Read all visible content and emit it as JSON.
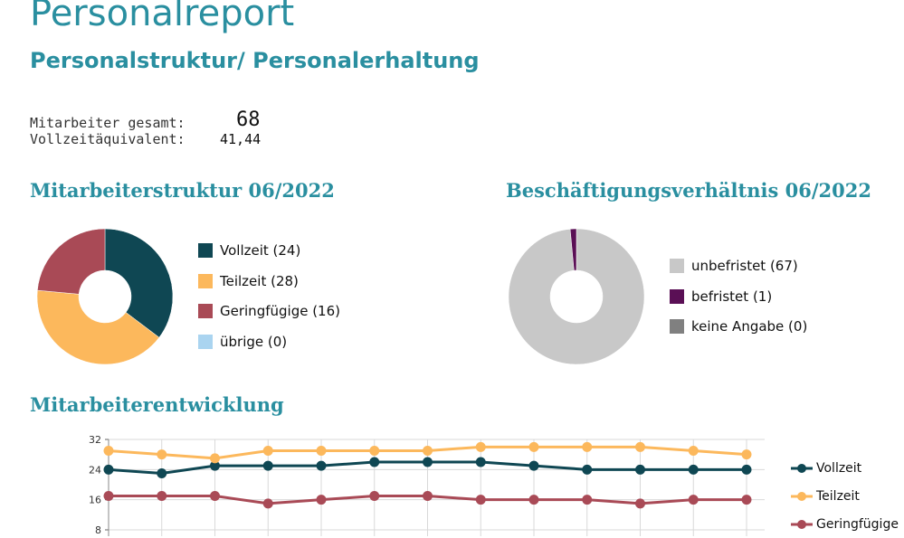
{
  "header": {
    "title": "Personalreport",
    "subtitle": "Personalstruktur/ Personalerhaltung"
  },
  "stats": {
    "employees_label": "Mitarbeiter gesamt:",
    "employees_value": "68",
    "fte_label": "Vollzeitäquivalent:",
    "fte_value": "41,44"
  },
  "colors": {
    "accent": "#2a8fa0",
    "vollzeit": "#0f4753",
    "teilzeit": "#fcb85c",
    "geringfuegige": "#a94a56",
    "uebrige": "#aad4f0",
    "unbefristet": "#c8c8c8",
    "befristet": "#5a0f55",
    "keine_angabe": "#808080"
  },
  "chart_data": [
    {
      "type": "pie",
      "title": "Mitarbeiterstruktur 06/2022",
      "style": "donut",
      "slices": [
        {
          "name": "Vollzeit",
          "value": 24,
          "legend": "Vollzeit (24)",
          "color": "#0f4753"
        },
        {
          "name": "Teilzeit",
          "value": 28,
          "legend": "Teilzeit (28)",
          "color": "#fcb85c"
        },
        {
          "name": "Geringfügige",
          "value": 16,
          "legend": "Geringfügige (16)",
          "color": "#a94a56"
        },
        {
          "name": "übrige",
          "value": 0,
          "legend": "übrige (0)",
          "color": "#aad4f0"
        }
      ]
    },
    {
      "type": "pie",
      "title": "Beschäftigungsverhältnis 06/2022",
      "style": "donut",
      "slices": [
        {
          "name": "unbefristet",
          "value": 67,
          "legend": "unbefristet (67)",
          "color": "#c8c8c8"
        },
        {
          "name": "befristet",
          "value": 1,
          "legend": "befristet (1)",
          "color": "#5a0f55"
        },
        {
          "name": "keine Angabe",
          "value": 0,
          "legend": "keine Angabe (0)",
          "color": "#808080"
        }
      ]
    },
    {
      "type": "line",
      "title": "Mitarbeiterentwicklung",
      "yticks": [
        32,
        24,
        16,
        8
      ],
      "ylim": [
        8,
        32
      ],
      "grid": true,
      "legend_position": "right",
      "series": [
        {
          "name": "Vollzeit",
          "color": "#0f4753",
          "values": [
            24,
            23,
            25,
            25,
            25,
            26,
            26,
            26,
            25,
            24,
            24,
            24,
            24
          ]
        },
        {
          "name": "Teilzeit",
          "color": "#fcb85c",
          "values": [
            29,
            28,
            27,
            29,
            29,
            29,
            29,
            30,
            30,
            30,
            30,
            29,
            28
          ]
        },
        {
          "name": "Geringfügige",
          "color": "#a94a56",
          "values": [
            17,
            17,
            17,
            15,
            16,
            17,
            17,
            16,
            16,
            16,
            15,
            16,
            16
          ]
        }
      ]
    }
  ]
}
